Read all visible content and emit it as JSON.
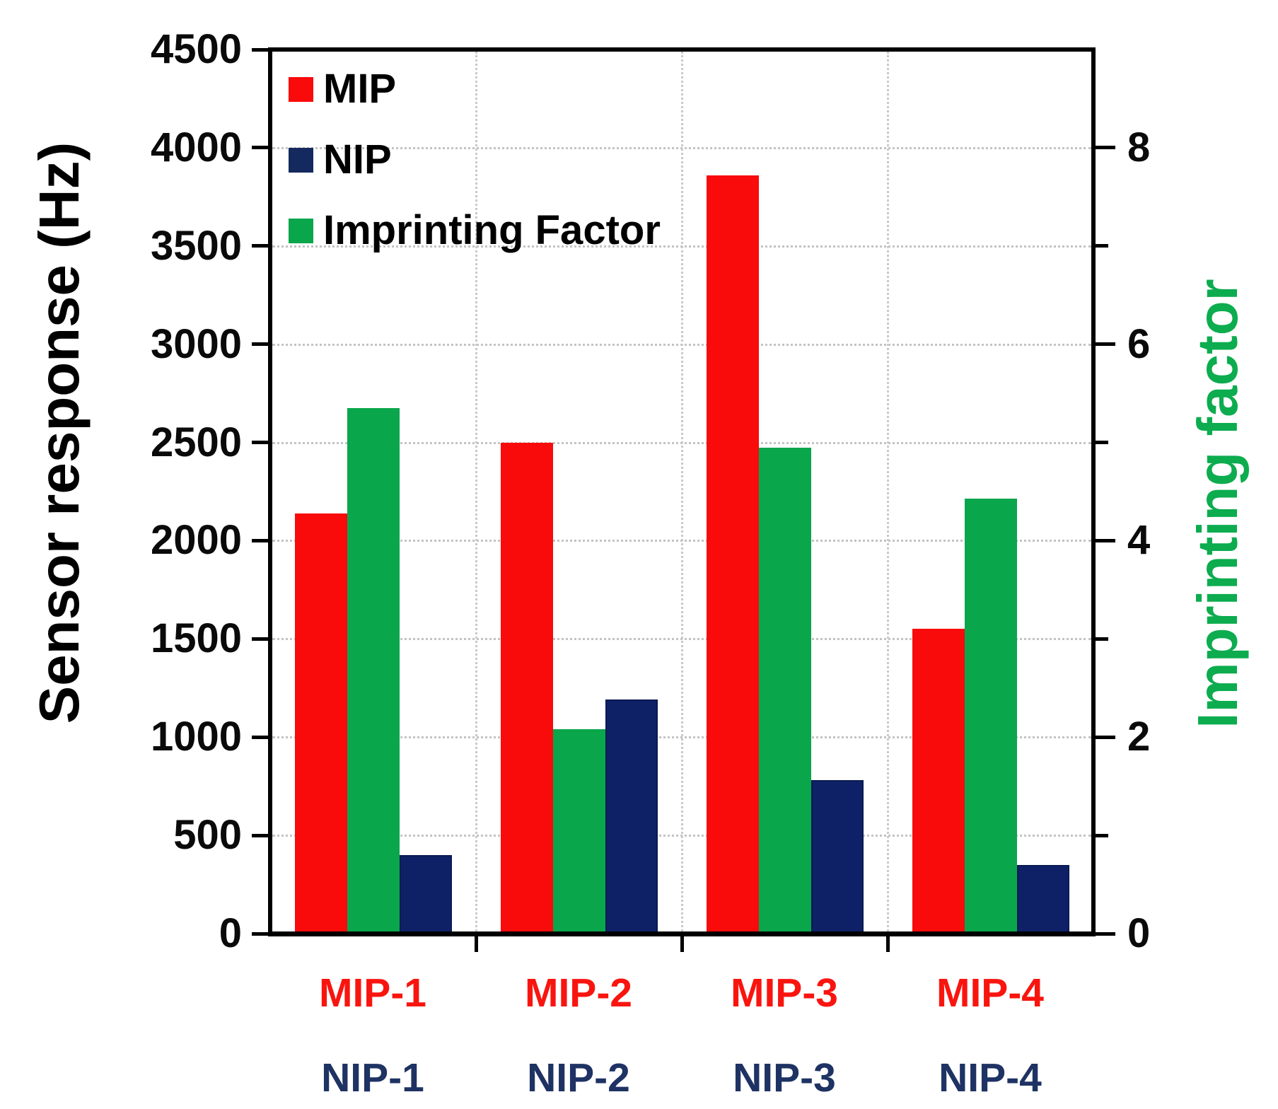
{
  "chart_data": {
    "type": "bar",
    "title": "",
    "categories_row1": [
      "MIP-1",
      "MIP-2",
      "MIP-3",
      "MIP-4"
    ],
    "categories_row2": [
      "NIP-1",
      "NIP-2",
      "NIP-3",
      "NIP-4"
    ],
    "series": [
      {
        "name": "MIP",
        "axis": "left",
        "color": "#f90b0b",
        "values": [
          2140,
          2500,
          3860,
          1550
        ]
      },
      {
        "name": "Imprinting Factor",
        "axis": "right",
        "color": "#0aa64c",
        "values": [
          5.35,
          2.08,
          4.95,
          4.43
        ]
      },
      {
        "name": "NIP",
        "axis": "left",
        "color": "#0f2166",
        "border_color": "#0a1a52",
        "values": [
          400,
          1190,
          780,
          350
        ]
      }
    ],
    "left_axis": {
      "label": "Sensor response (Hz)",
      "min": 0,
      "max": 4500,
      "step": 500,
      "tick_labels": [
        "0",
        "500",
        "1000",
        "1500",
        "2000",
        "2500",
        "3000",
        "3500",
        "4000",
        "4500"
      ]
    },
    "right_axis": {
      "label": "Imprinting factor",
      "min": 0,
      "max": 9,
      "labeled_ticks": [
        0,
        2,
        4,
        6,
        8
      ],
      "minor_ticks": [
        1,
        3,
        5,
        7
      ],
      "hz_per_unit": 500,
      "label_color": "#0cac4f"
    },
    "legend": [
      {
        "label": "MIP",
        "color": "#f90b0b"
      },
      {
        "label": "NIP",
        "color": "#14295e"
      },
      {
        "label": "Imprinting Factor",
        "color": "#0aa64c"
      }
    ],
    "category_colors": {
      "row1": "#f9150f",
      "row2": "#1e3263"
    },
    "grid": true,
    "legend_position": "top-left-inside"
  }
}
